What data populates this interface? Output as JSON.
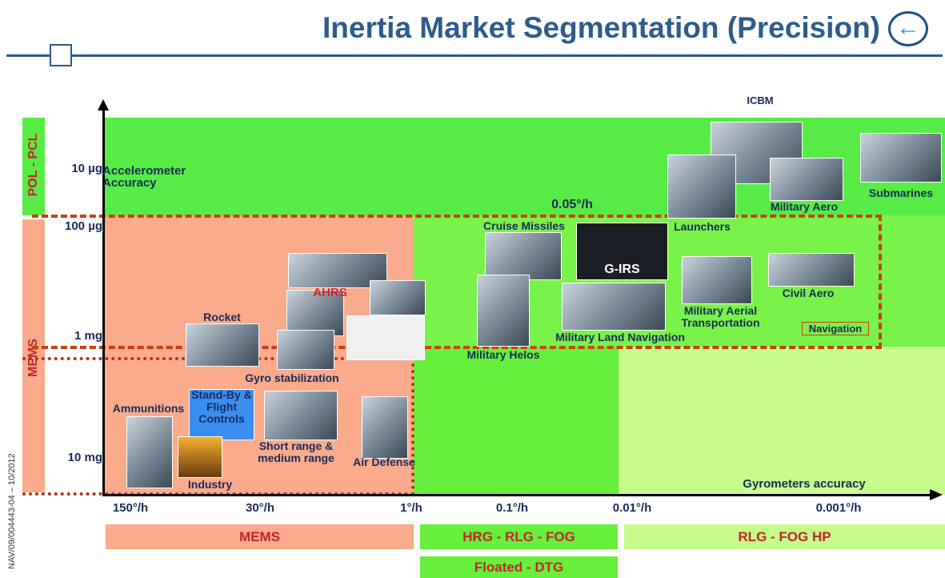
{
  "header": {
    "title": "Inertia Market Segmentation (Precision)"
  },
  "footer_note": "NAV/09/004443-04 – 10/2012",
  "y_axis": {
    "title": "Accelerometer Accuracy",
    "bands": [
      "POL - PCL",
      "MEMS"
    ],
    "ticks": [
      "10 µg",
      "100 µg",
      "1 mg",
      "10 mg"
    ]
  },
  "x_axis": {
    "title": "Gyrometers accuracy",
    "ticks": [
      "150°/h",
      "30°/h",
      "1°/h",
      "0.1°/h",
      "0.01°/h",
      "0.001°/h"
    ]
  },
  "threshold_label": "0.05°/h",
  "technologies": [
    "MEMS",
    "HRG - RLG - FOG",
    "RLG - FOG HP",
    "Floated - DTG"
  ],
  "applications": [
    "ICBM",
    "Submarines",
    "Military Aero",
    "Launchers",
    "Cruise Missiles",
    "G-IRS",
    "Civil Aero",
    "Military Aerial Transportation",
    "Navigation",
    "Military Land Navigation",
    "Military Helos",
    "AHRS",
    "Rocket",
    "Gyro stabilization",
    "Ammunitions",
    "Stand-By & Flight Controls",
    "Short range & medium range",
    "Air Defense",
    "Industry"
  ]
}
